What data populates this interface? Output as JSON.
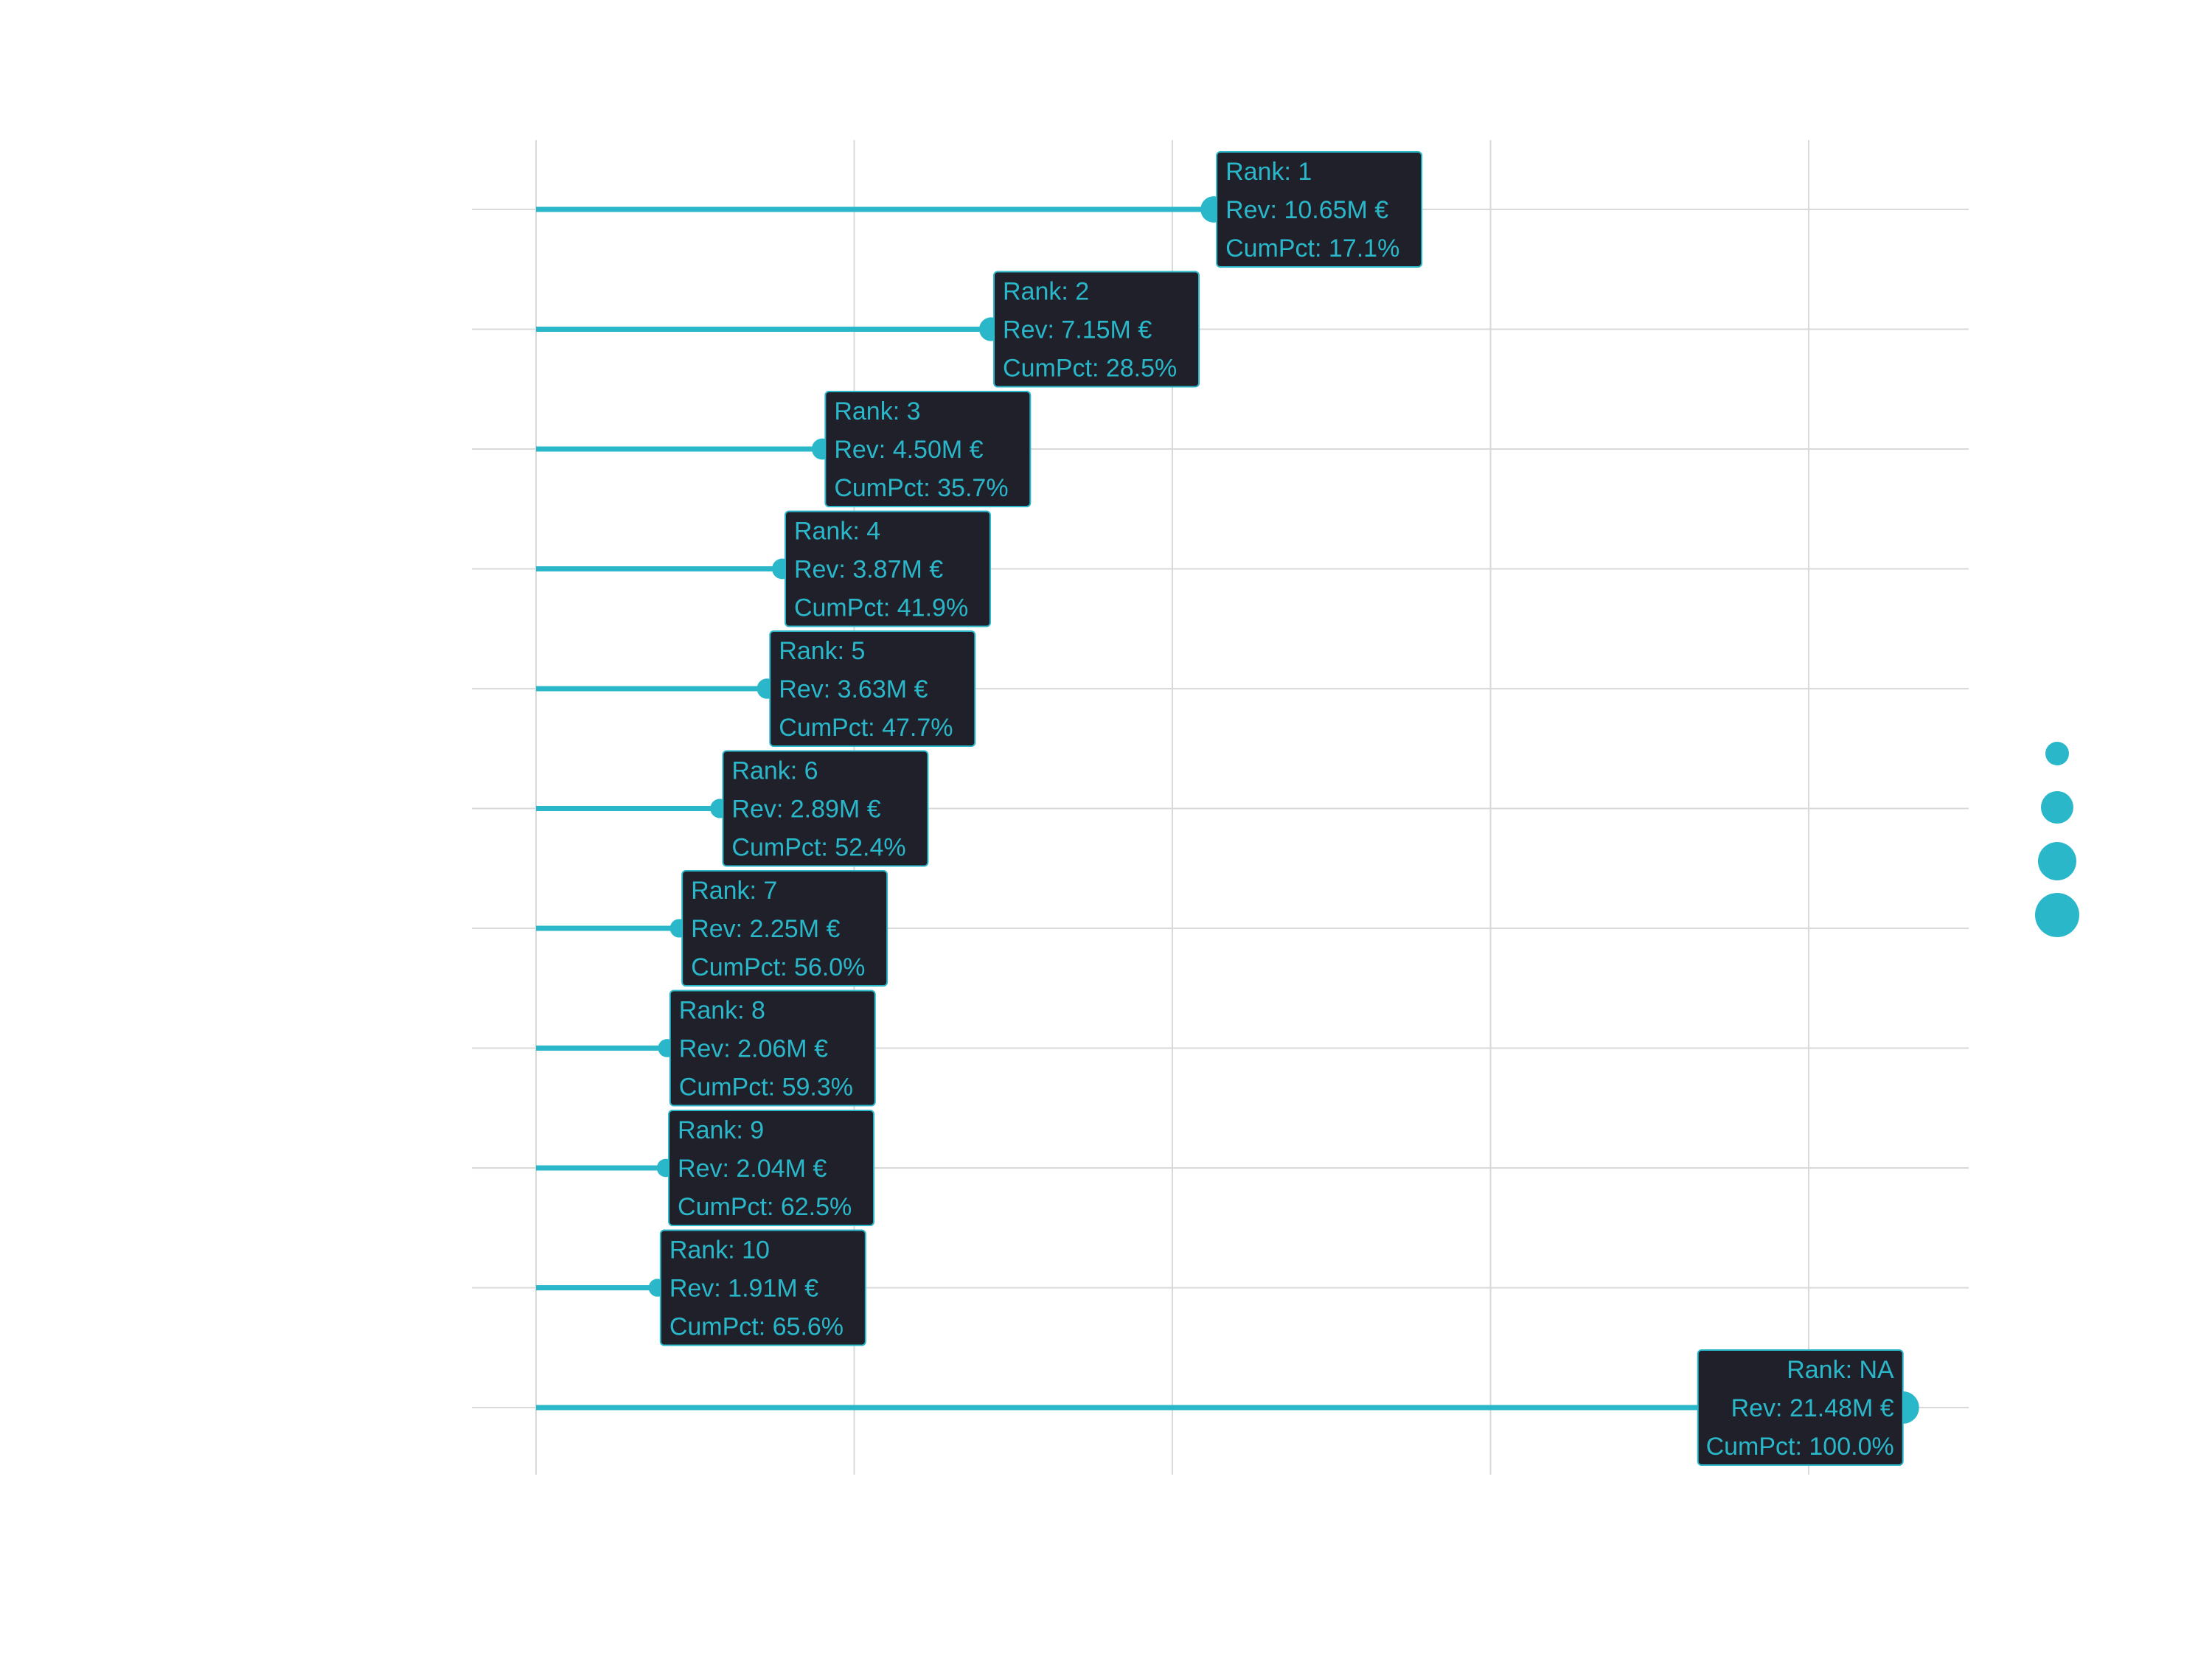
{
  "colors": {
    "accent": "#2ab7ca",
    "label_bg": "#1f2029",
    "grid": "#d9d9d9",
    "background": "#ffffff"
  },
  "chart_data": {
    "type": "lollipop",
    "orientation": "horizontal",
    "title": "",
    "xlabel": "",
    "ylabel": "",
    "xlim": [
      0,
      22.5
    ],
    "x_gridlines": [
      0,
      5,
      10,
      15,
      20
    ],
    "grid": true,
    "axis_tick_labels_shown": false,
    "points": [
      {
        "rank": "1",
        "revenue": 10.65,
        "cum_pct": 17.1,
        "label": [
          "Rank: 1",
          "Rev: 10.65M €",
          "CumPct: 17.1%"
        ]
      },
      {
        "rank": "2",
        "revenue": 7.15,
        "cum_pct": 28.5,
        "label": [
          "Rank: 2",
          "Rev: 7.15M €",
          "CumPct: 28.5%"
        ]
      },
      {
        "rank": "3",
        "revenue": 4.5,
        "cum_pct": 35.7,
        "label": [
          "Rank: 3",
          "Rev: 4.50M €",
          "CumPct: 35.7%"
        ]
      },
      {
        "rank": "4",
        "revenue": 3.87,
        "cum_pct": 41.9,
        "label": [
          "Rank: 4",
          "Rev: 3.87M €",
          "CumPct: 41.9%"
        ]
      },
      {
        "rank": "5",
        "revenue": 3.63,
        "cum_pct": 47.7,
        "label": [
          "Rank: 5",
          "Rev: 3.63M €",
          "CumPct: 47.7%"
        ]
      },
      {
        "rank": "6",
        "revenue": 2.89,
        "cum_pct": 52.4,
        "label": [
          "Rank: 6",
          "Rev: 2.89M €",
          "CumPct: 52.4%"
        ]
      },
      {
        "rank": "7",
        "revenue": 2.25,
        "cum_pct": 56.0,
        "label": [
          "Rank: 7",
          "Rev: 2.25M €",
          "CumPct: 56.0%"
        ]
      },
      {
        "rank": "8",
        "revenue": 2.06,
        "cum_pct": 59.3,
        "label": [
          "Rank: 8",
          "Rev: 2.06M €",
          "CumPct: 59.3%"
        ]
      },
      {
        "rank": "9",
        "revenue": 2.04,
        "cum_pct": 62.5,
        "label": [
          "Rank: 9",
          "Rev: 2.04M €",
          "CumPct: 62.5%"
        ]
      },
      {
        "rank": "10",
        "revenue": 1.91,
        "cum_pct": 65.6,
        "label": [
          "Rank: 10",
          "Rev: 1.91M €",
          "CumPct: 65.6%"
        ]
      },
      {
        "rank": "NA",
        "revenue": 21.48,
        "cum_pct": 100.0,
        "label": [
          "Rank: NA",
          "Rev: 21.48M €",
          "CumPct: 100.0%"
        ]
      }
    ],
    "legend": {
      "placement": "right",
      "title": "",
      "entry_labels": [],
      "marker_count": 4
    }
  }
}
